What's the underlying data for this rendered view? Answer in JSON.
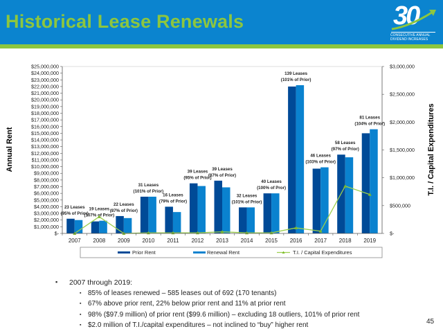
{
  "header": {
    "title": "Historical Lease Renewals",
    "logo": {
      "number": "30",
      "line1": "CONSECUTIVE ANNUAL",
      "line2": "DIVIDEND INCREASES"
    }
  },
  "chart_data": {
    "type": "bar",
    "categories": [
      "2007",
      "2008",
      "2009",
      "2010",
      "2011",
      "2012",
      "2013",
      "2014",
      "2015",
      "2016",
      "2017",
      "2018",
      "2019"
    ],
    "series": [
      {
        "name": "Prior Rent",
        "type": "bar",
        "axis": "left",
        "color": "#004a97",
        "values": [
          2200000,
          1800000,
          2600000,
          5500000,
          4000000,
          7500000,
          7900000,
          3900000,
          6000000,
          22000000,
          9700000,
          11800000,
          15000000
        ]
      },
      {
        "name": "Renewal Rent",
        "type": "bar",
        "axis": "left",
        "color": "#0a82cf",
        "values": [
          2000000,
          1900000,
          2300000,
          5500000,
          3200000,
          7100000,
          6900000,
          3900000,
          6000000,
          22200000,
          9900000,
          11400000,
          15600000
        ]
      },
      {
        "name": "T.I. / Capital Expenditures",
        "type": "line",
        "axis": "right",
        "color": "#9ccf4e",
        "values": [
          0,
          300000,
          0,
          10000,
          10000,
          10000,
          30000,
          10000,
          10000,
          100000,
          40000,
          850000,
          700000
        ]
      }
    ],
    "annotations": [
      {
        "year": "2007",
        "line1": "23 Leases",
        "line2": "(95% of Prior)"
      },
      {
        "year": "2008",
        "line1": "19 Leases",
        "line2": "(107% of Prior)"
      },
      {
        "year": "2009",
        "line1": "22 Leases",
        "line2": "(87% of Prior)"
      },
      {
        "year": "2010",
        "line1": "31 Leases",
        "line2": "(101% of Prior)"
      },
      {
        "year": "2011",
        "line1": "16 Leases",
        "line2": "(79% of Prior)"
      },
      {
        "year": "2012",
        "line1": "39 Leases",
        "line2": "(95% of Prior)"
      },
      {
        "year": "2013",
        "line1": "39 Leases",
        "line2": "(87% of Prior)"
      },
      {
        "year": "2014",
        "line1": "32 Leases",
        "line2": "(101% of Prior)"
      },
      {
        "year": "2015",
        "line1": "40 Leases",
        "line2": "(100% of Pror)"
      },
      {
        "year": "2016",
        "line1": "139 Leases",
        "line2": "(101% of Prior)"
      },
      {
        "year": "2017",
        "line1": "46 Leases",
        "line2": "(103% of Prior)"
      },
      {
        "year": "2018",
        "line1": "58 Leases",
        "line2": "(97% of Prior)"
      },
      {
        "year": "2019",
        "line1": "81 Leases",
        "line2": "(104% of Prior)"
      }
    ],
    "ylabel": "Annual Rent",
    "y2label": "T.I. / Capital Expenditures",
    "ylim": [
      0,
      25000000
    ],
    "y2lim": [
      0,
      3000000
    ],
    "yticks": [
      "$-",
      "$1,000,000",
      "$2,000,000",
      "$3,000,000",
      "$4,000,000",
      "$5,000,000",
      "$6,000,000",
      "$7,000,000",
      "$8,000,000",
      "$9,000,000",
      "$10,000,000",
      "$11,000,000",
      "$12,000,000",
      "$13,000,000",
      "$14,000,000",
      "$15,000,000",
      "$16,000,000",
      "$17,000,000",
      "$18,000,000",
      "$19,000,000",
      "$20,000,000",
      "$21,000,000",
      "$22,000,000",
      "$23,000,000",
      "$24,000,000",
      "$25,000,000"
    ],
    "y2ticks": [
      "$-",
      "$500,000",
      "$1,000,000",
      "$1,500,000",
      "$2,000,000",
      "$2,500,000",
      "$3,000,000"
    ],
    "legend": [
      "Prior Rent",
      "Renewal Rent",
      "T.I. / Capital Expenditures"
    ],
    "legend_position": "bottom",
    "grid": false
  },
  "bullets": {
    "main": "2007 through 2019:",
    "items": [
      "85% of leases renewed – 585 leases out of 692 (170 tenants)",
      "67% above prior rent, 22% below prior rent and 11% at prior rent",
      "98% ($97.9 million) of prior rent ($99.6 million) – excluding 18 outliers, 101% of prior rent",
      "$2.0 million of T.I./capital expenditures – not inclined to “buy” higher rent"
    ]
  },
  "page_number": "45"
}
